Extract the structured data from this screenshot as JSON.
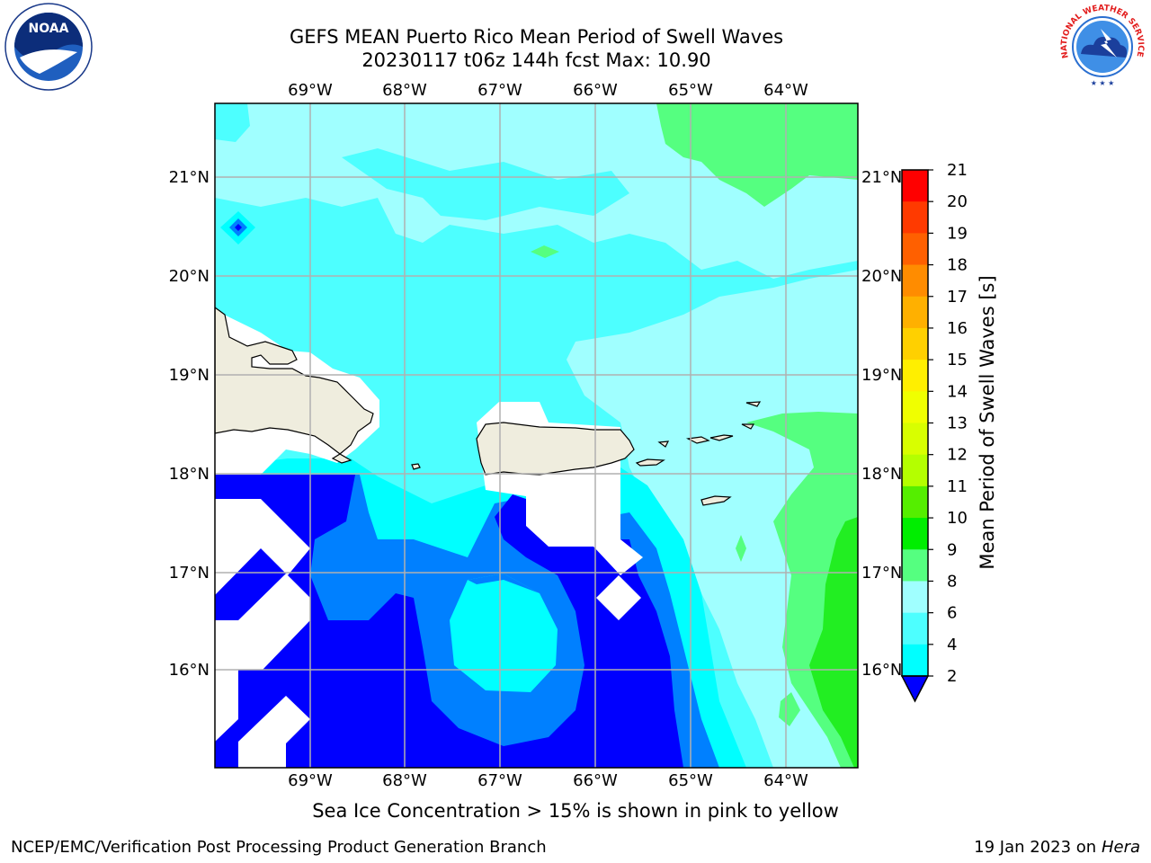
{
  "header": {
    "title_line1": "GEFS MEAN Puerto Rico Mean Period of Swell Waves",
    "title_line2": "20230117 t06z 144h fcst   Max: 10.90"
  },
  "map": {
    "lon_labels": [
      "69°W",
      "68°W",
      "67°W",
      "66°W",
      "65°W",
      "64°W"
    ],
    "lat_labels": [
      "21°N",
      "20°N",
      "19°N",
      "18°N",
      "17°N",
      "16°N"
    ],
    "field_colors": {
      "land": "#efedde",
      "white_zone": "#ffffff",
      "period_2_4": "#0000ff",
      "period_4_6": "#0080ff",
      "period_6_8": "#00ffff",
      "period_8_9": "#4dffff",
      "period_9_10": "#a0ffff",
      "period_10_11": "#55ff80",
      "period_11_12": "#22ee22"
    }
  },
  "colorbar": {
    "label": "Mean Period of Swell Waves [s]",
    "ticks": [
      "21",
      "20",
      "19",
      "18",
      "17",
      "16",
      "15",
      "14",
      "13",
      "12",
      "11",
      "10",
      "9",
      "8",
      "6",
      "4",
      "2"
    ],
    "colors": [
      "#ff0000",
      "#ff3a00",
      "#ff6000",
      "#ff8c00",
      "#ffb000",
      "#ffd000",
      "#ffef00",
      "#f0ff00",
      "#d8ff00",
      "#b4ff00",
      "#55ee00",
      "#00ee00",
      "#55ff80",
      "#a0ffff",
      "#4dffff",
      "#00ffff",
      "#0080ff",
      "#0000ff"
    ]
  },
  "caption": "Sea Ice Concentration > 15% is shown in pink to yellow",
  "footer": {
    "left": "NCEP/EMC/Verification Post Processing Product Generation Branch",
    "date": "19 Jan 2023 on",
    "machine": "Hera"
  },
  "logos": {
    "noaa_text": "NOAA",
    "nws_text": "NATIONAL WEATHER SERVICE"
  }
}
